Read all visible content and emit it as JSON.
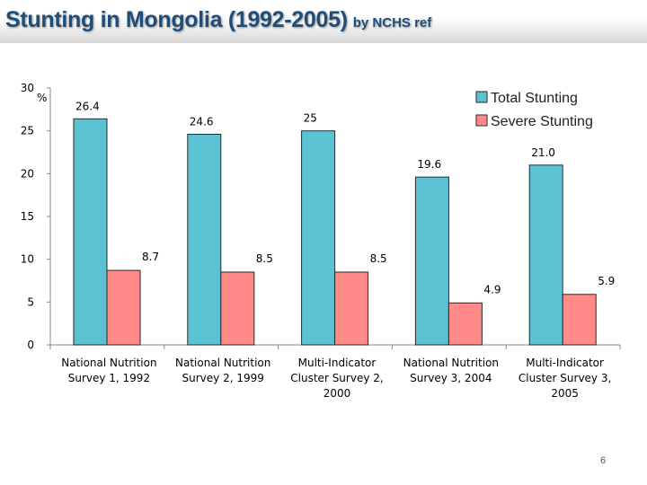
{
  "slide": {
    "title": "Stunting in Mongolia (1992-2005)",
    "title_suffix": "by NCHS ref",
    "page_number": "6",
    "title_color": "#1f4e79"
  },
  "chart_data": {
    "type": "bar",
    "title": "",
    "ylabel": "%",
    "ylim": [
      0,
      30
    ],
    "yticks": [
      0,
      5,
      10,
      15,
      20,
      25,
      30
    ],
    "grid": false,
    "legend_position": "top-right",
    "categories": [
      [
        "National Nutrition",
        "Survey 1, 1992"
      ],
      [
        "National Nutrition",
        "Survey 2, 1999"
      ],
      [
        "Multi-Indicator",
        "Cluster Survey 2,",
        "2000"
      ],
      [
        "National Nutrition",
        "Survey 3, 2004"
      ],
      [
        "Multi-Indicator",
        "Cluster Survey 3,",
        "2005"
      ]
    ],
    "series": [
      {
        "name": "Total Stunting",
        "color": "#5bc2d4",
        "values": [
          26.4,
          24.6,
          25,
          19.6,
          21.0
        ],
        "labels": [
          "26.4",
          "24.6",
          "25",
          "19.6",
          "21.0"
        ]
      },
      {
        "name": "Severe Stunting",
        "color": "#ff8a88",
        "values": [
          8.7,
          8.5,
          8.5,
          4.9,
          5.9
        ],
        "labels": [
          "8.7",
          "8.5",
          "8.5",
          "4.9",
          "5.9"
        ]
      }
    ]
  }
}
